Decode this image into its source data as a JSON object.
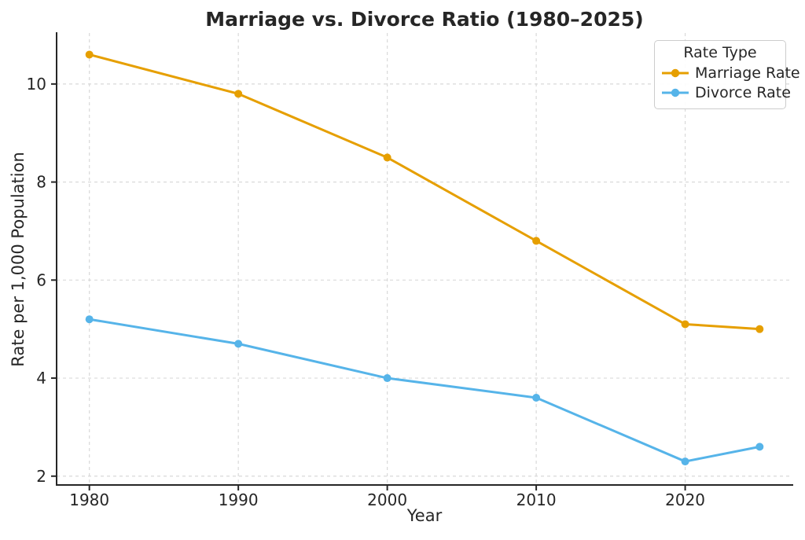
{
  "figure": {
    "background": "#FFFFFF"
  },
  "chart_data": {
    "type": "line",
    "title": "Marriage vs. Divorce Ratio (1980–2025)",
    "xlabel": "Year",
    "ylabel": "Rate per 1,000 Population",
    "x": [
      1980,
      1990,
      2000,
      2010,
      2020,
      2025
    ],
    "series": [
      {
        "name": "Marriage Rate",
        "color": "#E69F00",
        "values": [
          10.6,
          9.8,
          8.5,
          6.8,
          5.1,
          5.0
        ]
      },
      {
        "name": "Divorce Rate",
        "color": "#56B4E9",
        "values": [
          5.2,
          4.7,
          4.0,
          3.6,
          2.3,
          2.6
        ]
      }
    ],
    "xticks": [
      1980,
      1990,
      2000,
      2010,
      2020
    ],
    "yticks": [
      2,
      4,
      6,
      8,
      10
    ],
    "xlim": [
      1977.8,
      2027.2
    ],
    "ylim": [
      1.82,
      11.04
    ],
    "grid": true,
    "grid_linestyle": "dashed",
    "marker": "circle",
    "legend": {
      "title": "Rate Type",
      "position": "upper-right"
    },
    "colors": {
      "grid": "#D9D9D9",
      "spine": "#262626",
      "text": "#262626",
      "legend_border": "#CCCCCC"
    }
  }
}
